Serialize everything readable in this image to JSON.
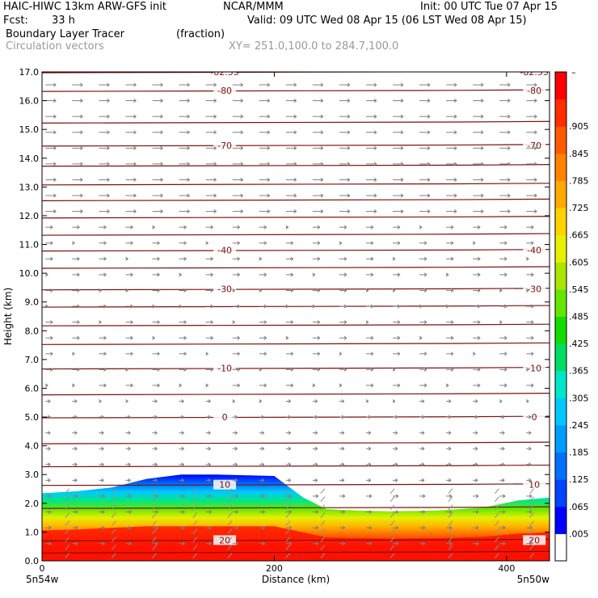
{
  "header": {
    "model": "HAIC-HIWC 13km ARW-GFS init",
    "center": "NCAR/MMM",
    "init": "Init: 00 UTC Tue 07 Apr 15",
    "fcst_label": "Fcst:",
    "fcst_value": "33 h",
    "valid": "Valid: 09 UTC Wed 08 Apr 15 (06 LST Wed 08 Apr 15)",
    "field": "Boundary Layer Tracer",
    "units": "(fraction)",
    "vectors": "Circulation vectors",
    "xy": "XY= 251.0,100.0 to 284.7,100.0"
  },
  "chart_data": {
    "type": "heatmap",
    "xlabel": "Distance (km)",
    "ylabel": "Height (km)",
    "xlim": [
      0,
      437
    ],
    "ylim": [
      0,
      17
    ],
    "x_ticks": [
      "0",
      "200",
      "400"
    ],
    "x_tick_values": [
      0,
      200,
      400
    ],
    "x_end_labels": [
      "5n54w",
      "5n50w"
    ],
    "y_ticks": [
      "0.0",
      "1.0",
      "2.0",
      "3.0",
      "4.0",
      "5.0",
      "6.0",
      "7.0",
      "8.0",
      "9.0",
      "10.0",
      "11.0",
      "12.0",
      "13.0",
      "14.0",
      "15.0",
      "16.0",
      "17.0"
    ],
    "colorbar": {
      "labels": [
        ".005",
        ".065",
        ".125",
        ".185",
        ".245",
        ".305",
        ".365",
        ".425",
        ".485",
        ".545",
        ".605",
        ".665",
        ".725",
        ".785",
        ".845",
        ".905"
      ],
      "top_label": "–",
      "colors": [
        "#ffffff",
        "#0000ff",
        "#0044ff",
        "#0070ff",
        "#009cff",
        "#00c8ff",
        "#00e6c8",
        "#00dc64",
        "#14dc00",
        "#64e600",
        "#aae600",
        "#e6f000",
        "#ffd200",
        "#ffaa00",
        "#ff8200",
        "#ff5a00",
        "#ff2d00",
        "#ff0000"
      ]
    },
    "tracer_top_km": [
      [
        0,
        2.35
      ],
      [
        30,
        2.42
      ],
      [
        60,
        2.55
      ],
      [
        90,
        2.85
      ],
      [
        120,
        3.0
      ],
      [
        150,
        3.0
      ],
      [
        200,
        2.95
      ],
      [
        225,
        2.2
      ],
      [
        245,
        1.8
      ],
      [
        270,
        1.75
      ],
      [
        300,
        1.72
      ],
      [
        340,
        1.75
      ],
      [
        380,
        1.85
      ],
      [
        410,
        2.1
      ],
      [
        437,
        2.2
      ]
    ],
    "temperature_contours": [
      {
        "label": "-82.55",
        "y_km": 17.0
      },
      {
        "label": "-80",
        "y_km": 16.35
      },
      {
        "label": "-70",
        "y_km": 14.45
      },
      {
        "label": "-40",
        "y_km": 10.8
      },
      {
        "label": "-30",
        "y_km": 9.45
      },
      {
        "label": "-10",
        "y_km": 6.7
      },
      {
        "label": "0",
        "y_km": 5.0
      },
      {
        "label": "10",
        "y_km": 2.65
      },
      {
        "label": "20",
        "y_km": 0.72
      }
    ],
    "unlabeled_contour_km": [
      15.25,
      13.75,
      13.1,
      12.55,
      11.95,
      11.35,
      10.2,
      8.85,
      8.2,
      7.55,
      5.8,
      4.1,
      3.3,
      1.85,
      0.3
    ]
  }
}
